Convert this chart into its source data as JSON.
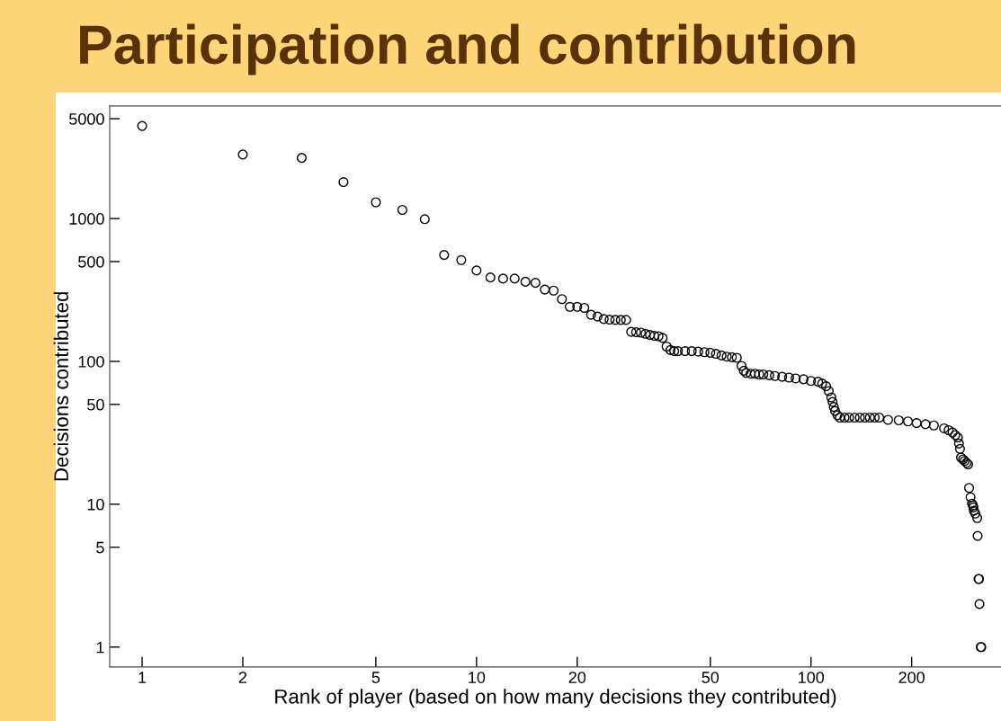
{
  "chart_data": {
    "type": "scatter",
    "title": "Participation and contribution",
    "xlabel": "Rank of player (based on how many decisions they contributed)",
    "ylabel": "Decisions contributed",
    "log": "xy",
    "grid": false,
    "marker": "circle",
    "color": "#000000",
    "xlim": [
      0.8,
      370
    ],
    "ylim": [
      0.726,
      6140
    ],
    "xticks": [
      1,
      2,
      5,
      10,
      20,
      50,
      100,
      200
    ],
    "yticks": [
      1,
      5,
      10,
      50,
      100,
      500,
      1000,
      5000
    ],
    "x": [
      1,
      2,
      3,
      4,
      5,
      6,
      7,
      8,
      9,
      10,
      11,
      12,
      13,
      14,
      15,
      16,
      17,
      18,
      19,
      20,
      21,
      22,
      23,
      24,
      25,
      26,
      27,
      28,
      29,
      30,
      31,
      32,
      33,
      34,
      35,
      36,
      37,
      38,
      39,
      40,
      42,
      44,
      46,
      48,
      50,
      52,
      54,
      56,
      58,
      60,
      62,
      63,
      64,
      66,
      68,
      70,
      72,
      75,
      78,
      82,
      86,
      90,
      95,
      100,
      105,
      108,
      111,
      113,
      115,
      116,
      117,
      118,
      120,
      122,
      126,
      130,
      135,
      140,
      145,
      150,
      155,
      160,
      170,
      183,
      195,
      207,
      220,
      233,
      250,
      258,
      265,
      270,
      275,
      277,
      279,
      281,
      285,
      288,
      292,
      295,
      297,
      300,
      303,
      305,
      306,
      307,
      310,
      314,
      315,
      317,
      318,
      319,
      322,
      323
    ],
    "values": [
      4450,
      2810,
      2660,
      1800,
      1300,
      1150,
      990,
      556,
      512,
      433,
      387,
      380,
      380,
      361,
      355,
      318,
      313,
      273,
      241,
      241,
      237,
      212,
      206,
      198,
      196,
      195,
      195,
      195,
      161,
      160,
      159,
      156,
      153,
      151,
      150,
      146,
      127,
      120,
      118,
      118,
      118,
      118,
      117,
      116,
      115,
      113,
      110,
      108,
      107,
      106,
      93,
      86,
      83,
      82,
      82,
      81,
      81,
      80,
      79,
      78,
      77,
      76,
      75,
      73,
      72,
      70,
      67,
      62,
      56,
      52,
      48,
      45,
      42,
      40.4,
      40.4,
      40.4,
      40.4,
      40.4,
      40.4,
      40.4,
      40.4,
      40.4,
      39,
      38.7,
      38,
      37,
      36.3,
      35.6,
      34,
      33,
      31.8,
      30.5,
      29.3,
      26.6,
      24.4,
      21.2,
      20.6,
      20.1,
      19.5,
      19,
      13,
      11.2,
      10.1,
      9.8,
      9.5,
      9,
      8.6,
      8,
      6,
      3,
      3,
      2,
      1,
      1
    ]
  }
}
